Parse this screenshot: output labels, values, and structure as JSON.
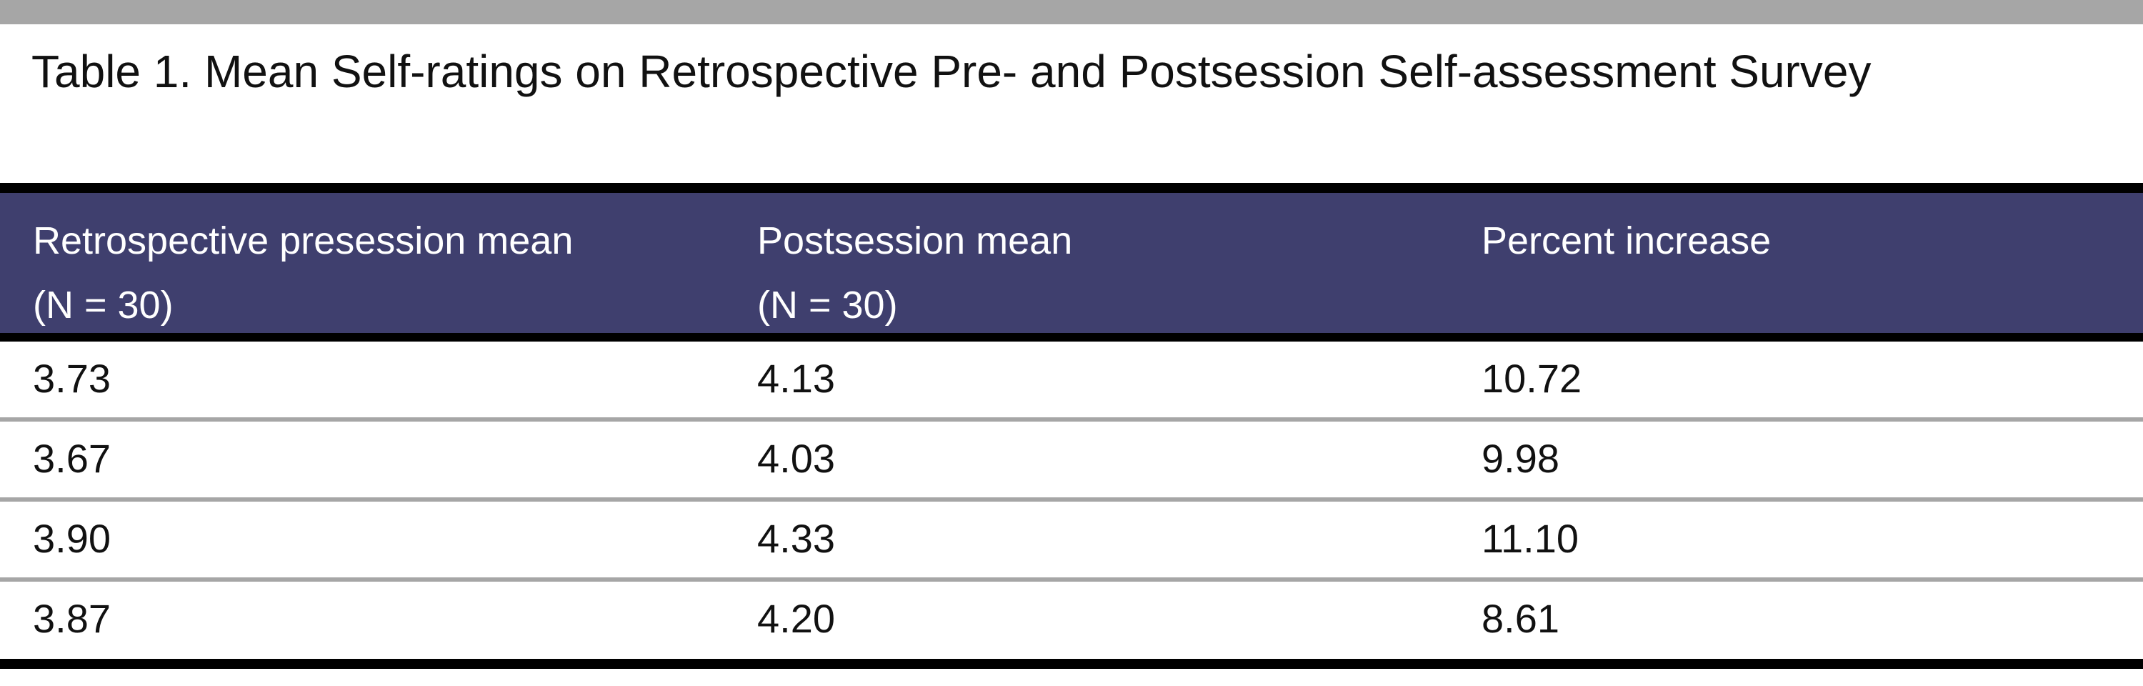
{
  "caption": {
    "label": "Table 1.",
    "title": "Mean Self-ratings on Retrospective Pre- and Postsession Self-assessment Survey"
  },
  "table": {
    "headers": [
      {
        "line1": "Retrospective presession mean",
        "line2": "(N = 30)"
      },
      {
        "line1": "Postsession mean",
        "line2": "(N = 30)"
      },
      {
        "line1": "Percent increase",
        "line2": ""
      }
    ],
    "rows": [
      [
        "3.73",
        "4.13",
        "10.72"
      ],
      [
        "3.67",
        "4.03",
        "9.98"
      ],
      [
        "3.90",
        "4.33",
        "11.10"
      ],
      [
        "3.87",
        "4.20",
        "8.61"
      ]
    ]
  },
  "colors": {
    "header_bg": "#3f3f6e",
    "rule": "#000000",
    "row_separator": "#a6a6a6"
  }
}
